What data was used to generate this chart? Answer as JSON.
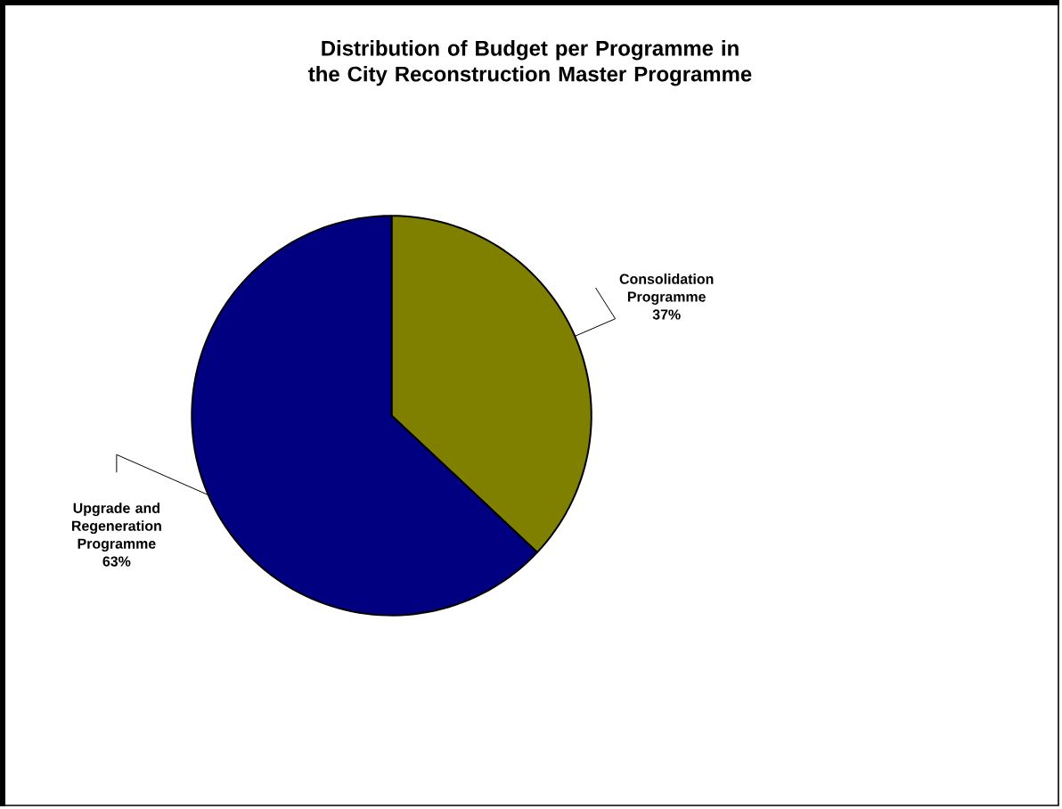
{
  "chart_data": {
    "type": "pie",
    "title": "Distribution of Budget per Programme in the City Reconstruction Master Programme",
    "categories": [
      "Consolidation Programme",
      "Upgrade and Regeneration Programme"
    ],
    "values": [
      37,
      63
    ],
    "colors": [
      "#808000",
      "#000080"
    ],
    "value_labels": [
      "37%",
      "63%"
    ]
  }
}
